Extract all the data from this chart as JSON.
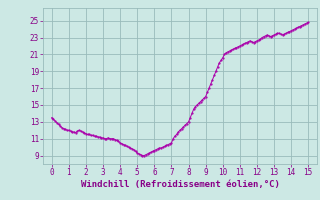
{
  "title": "",
  "xlabel": "Windchill (Refroidissement éolien,°C)",
  "ylabel": "",
  "bg_color": "#cce8e4",
  "line_color": "#aa00aa",
  "marker_color": "#aa00aa",
  "xlim": [
    -0.5,
    15.5
  ],
  "ylim": [
    8.0,
    26.5
  ],
  "xticks": [
    0,
    1,
    2,
    3,
    4,
    5,
    6,
    7,
    8,
    9,
    10,
    11,
    12,
    13,
    14,
    15
  ],
  "yticks": [
    9,
    11,
    13,
    15,
    17,
    19,
    21,
    23,
    25
  ],
  "grid_color": "#99bbbb",
  "font_color": "#880088",
  "x": [
    0.0,
    0.1,
    0.2,
    0.3,
    0.4,
    0.5,
    0.6,
    0.7,
    0.8,
    0.9,
    1.0,
    1.1,
    1.2,
    1.3,
    1.4,
    1.5,
    1.6,
    1.7,
    1.8,
    1.9,
    2.0,
    2.1,
    2.2,
    2.3,
    2.4,
    2.5,
    2.6,
    2.7,
    2.8,
    2.9,
    3.0,
    3.1,
    3.2,
    3.3,
    3.4,
    3.5,
    3.6,
    3.7,
    3.8,
    3.9,
    4.0,
    4.1,
    4.2,
    4.3,
    4.4,
    4.5,
    4.6,
    4.7,
    4.8,
    4.9,
    5.0,
    5.1,
    5.2,
    5.3,
    5.4,
    5.5,
    5.6,
    5.7,
    5.8,
    5.9,
    6.0,
    6.1,
    6.2,
    6.3,
    6.4,
    6.5,
    6.6,
    6.7,
    6.8,
    6.9,
    7.0,
    7.1,
    7.2,
    7.3,
    7.4,
    7.5,
    7.6,
    7.7,
    7.8,
    7.9,
    8.0,
    8.1,
    8.2,
    8.3,
    8.4,
    8.5,
    8.6,
    8.7,
    8.8,
    8.9,
    9.0,
    9.1,
    9.2,
    9.3,
    9.4,
    9.5,
    9.6,
    9.7,
    9.8,
    9.9,
    10.0,
    10.1,
    10.2,
    10.3,
    10.4,
    10.5,
    10.6,
    10.7,
    10.8,
    10.9,
    11.0,
    11.1,
    11.2,
    11.3,
    11.4,
    11.5,
    11.6,
    11.7,
    11.8,
    11.9,
    12.0,
    12.1,
    12.2,
    12.3,
    12.4,
    12.5,
    12.6,
    12.7,
    12.8,
    12.9,
    13.0,
    13.1,
    13.2,
    13.3,
    13.4,
    13.5,
    13.6,
    13.7,
    13.8,
    13.9,
    14.0,
    14.1,
    14.2,
    14.3,
    14.4,
    14.5,
    14.6,
    14.7,
    14.8,
    14.9,
    15.0
  ],
  "y": [
    13.5,
    13.3,
    13.1,
    12.9,
    12.7,
    12.5,
    12.3,
    12.2,
    12.1,
    12.0,
    12.0,
    11.9,
    11.8,
    11.8,
    11.7,
    11.9,
    12.0,
    11.9,
    11.8,
    11.7,
    11.6,
    11.5,
    11.5,
    11.4,
    11.4,
    11.3,
    11.3,
    11.2,
    11.2,
    11.1,
    11.1,
    11.0,
    11.0,
    11.1,
    11.0,
    11.0,
    11.0,
    10.9,
    10.8,
    10.7,
    10.5,
    10.4,
    10.3,
    10.2,
    10.1,
    10.0,
    9.9,
    9.8,
    9.7,
    9.5,
    9.3,
    9.2,
    9.1,
    9.0,
    9.0,
    9.1,
    9.2,
    9.3,
    9.4,
    9.5,
    9.6,
    9.7,
    9.8,
    9.9,
    9.9,
    10.0,
    10.1,
    10.2,
    10.3,
    10.4,
    10.5,
    11.0,
    11.3,
    11.5,
    11.8,
    12.0,
    12.2,
    12.4,
    12.6,
    12.8,
    13.0,
    13.5,
    14.0,
    14.5,
    14.8,
    15.0,
    15.2,
    15.4,
    15.6,
    15.8,
    16.0,
    16.5,
    17.0,
    17.5,
    18.0,
    18.5,
    19.0,
    19.5,
    20.0,
    20.3,
    20.6,
    21.0,
    21.2,
    21.3,
    21.4,
    21.5,
    21.6,
    21.7,
    21.8,
    21.9,
    22.0,
    22.1,
    22.2,
    22.3,
    22.4,
    22.5,
    22.6,
    22.5,
    22.4,
    22.5,
    22.6,
    22.7,
    22.8,
    23.0,
    23.1,
    23.2,
    23.3,
    23.2,
    23.1,
    23.2,
    23.3,
    23.4,
    23.5,
    23.5,
    23.4,
    23.3,
    23.4,
    23.5,
    23.6,
    23.7,
    23.8,
    23.9,
    24.0,
    24.1,
    24.2,
    24.3,
    24.4,
    24.5,
    24.6,
    24.7,
    24.8
  ]
}
